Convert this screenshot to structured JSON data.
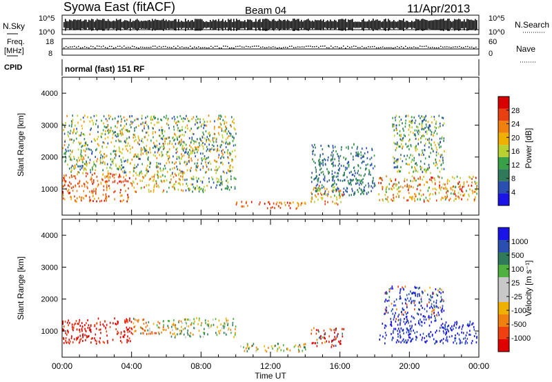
{
  "header": {
    "station": "Syowa East (fitACF)",
    "beam": "Beam 04",
    "date": "11/Apr/2013"
  },
  "status_panels": {
    "nsky_label": "N.Sky",
    "nsearch_label": "N.Search",
    "left_ticks_top": [
      "10^5",
      "10^0"
    ],
    "right_ticks_top": [
      "10^5",
      "10^0"
    ],
    "freq_label": "Freq.",
    "freq_unit": "[MHz]",
    "freq_ticks": [
      "18",
      "8"
    ],
    "nave_label": "Nave",
    "nave_ticks": [
      "60",
      "0"
    ],
    "cpid_label": "CPID",
    "cpid_text": "normal (fast) 151 RF"
  },
  "colors": {
    "power_scale": [
      "#1a14e6",
      "#2a4fb0",
      "#2e7a5a",
      "#3aa048",
      "#b8d030",
      "#f0b000",
      "#f08010",
      "#e84010",
      "#d80000"
    ],
    "velocity_scale": [
      "#e00000",
      "#f04010",
      "#f08010",
      "#f0b000",
      "#c8c8c8",
      "#c8c8c8",
      "#50b040",
      "#2e7a5a",
      "#2a4fb0",
      "#1a14e6"
    ]
  },
  "chart_data": [
    {
      "type": "heatmap",
      "quantity": "power",
      "ylabel": "Slant Range [km]",
      "ylim": [
        180,
        4500
      ],
      "yticks": [
        1000,
        2000,
        3000,
        4000
      ],
      "xlim": [
        0,
        24
      ],
      "colorbar_label": "Power [dB]",
      "colorbar_ticks": [
        "4",
        "8",
        "12",
        "16",
        "20",
        "24",
        "28"
      ],
      "regions": [
        {
          "t": [
            0.0,
            4.0
          ],
          "r": [
            600,
            1500
          ],
          "level": [
            20,
            30
          ]
        },
        {
          "t": [
            4.0,
            7.0
          ],
          "r": [
            900,
            1500
          ],
          "level": [
            12,
            26
          ]
        },
        {
          "t": [
            7.0,
            10.0
          ],
          "r": [
            900,
            1400
          ],
          "level": [
            4,
            20
          ]
        },
        {
          "t": [
            10.0,
            14.0
          ],
          "r": [
            380,
            600
          ],
          "level": [
            20,
            30
          ]
        },
        {
          "t": [
            14.3,
            16.2
          ],
          "r": [
            500,
            1100
          ],
          "level": [
            12,
            28
          ]
        },
        {
          "t": [
            18.2,
            23.9
          ],
          "r": [
            600,
            1400
          ],
          "level": [
            12,
            30
          ]
        },
        {
          "t": [
            0.0,
            10.0
          ],
          "r": [
            1500,
            3300
          ],
          "level": [
            4,
            24
          ]
        },
        {
          "t": [
            14.3,
            18.0
          ],
          "r": [
            800,
            2400
          ],
          "level": [
            4,
            12
          ]
        },
        {
          "t": [
            19.0,
            22.0
          ],
          "r": [
            1500,
            3300
          ],
          "level": [
            4,
            20
          ]
        }
      ]
    },
    {
      "type": "heatmap",
      "quantity": "velocity",
      "ylabel": "Slant Range [km]",
      "ylim": [
        180,
        4500
      ],
      "yticks": [
        1000,
        2000,
        3000,
        4000
      ],
      "xlim": [
        0,
        24
      ],
      "xlabel": "Time UT",
      "xticks": [
        "00:00",
        "04:00",
        "08:00",
        "12:00",
        "16:00",
        "20:00",
        "00:00"
      ],
      "colorbar_label": "Velocity [m s⁻¹]",
      "colorbar_ticks": [
        "-1000",
        "-500",
        "-100",
        "-25",
        "25",
        "100",
        "500",
        "1000"
      ],
      "regions": [
        {
          "t": [
            0.0,
            4.0
          ],
          "r": [
            600,
            1400
          ],
          "level": [
            -500,
            -100
          ]
        },
        {
          "t": [
            4.0,
            6.0
          ],
          "r": [
            900,
            1400
          ],
          "level": [
            -100,
            25
          ]
        },
        {
          "t": [
            6.0,
            10.0
          ],
          "r": [
            800,
            1400
          ],
          "level": [
            -25,
            25
          ]
        },
        {
          "t": [
            10.0,
            14.0
          ],
          "r": [
            350,
            600
          ],
          "level": [
            -25,
            25
          ]
        },
        {
          "t": [
            14.3,
            16.2
          ],
          "r": [
            500,
            1100
          ],
          "level": [
            -500,
            100
          ]
        },
        {
          "t": [
            18.2,
            23.9
          ],
          "r": [
            600,
            1300
          ],
          "level": [
            100,
            500
          ]
        },
        {
          "t": [
            18.5,
            22.0
          ],
          "r": [
            1300,
            2400
          ],
          "level": [
            -100,
            500
          ]
        }
      ]
    }
  ]
}
